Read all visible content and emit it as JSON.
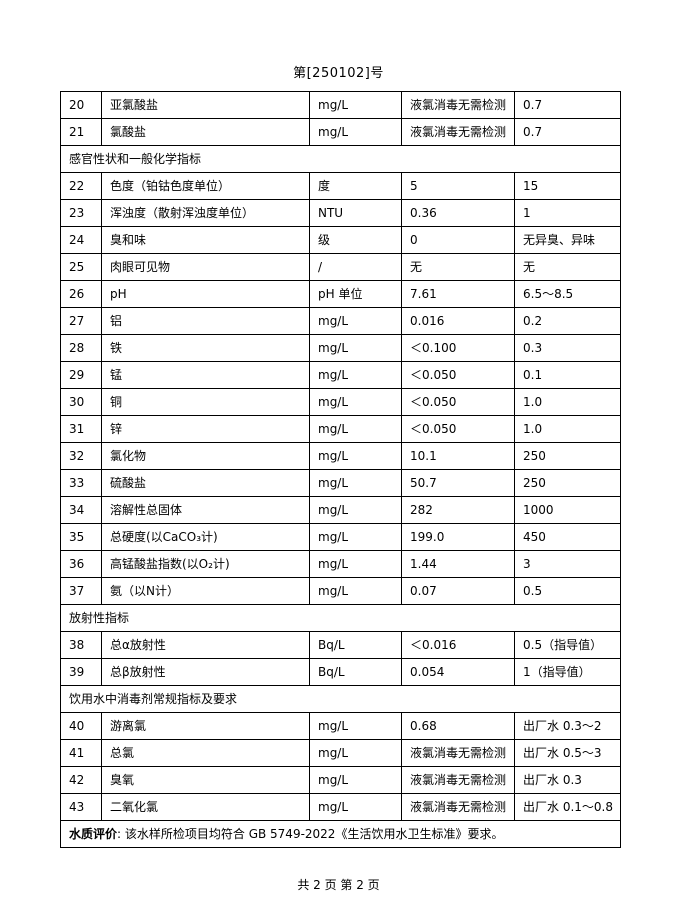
{
  "page": {
    "doc_number": "第[250102]号",
    "footer": "共 2 页 第 2 页"
  },
  "table": {
    "rows": [
      {
        "no": "20",
        "name": "亚氯酸盐",
        "unit": "mg/L",
        "value": "液氯消毒无需检测",
        "limit": "0.7"
      },
      {
        "no": "21",
        "name": "氯酸盐",
        "unit": "mg/L",
        "value": "液氯消毒无需检测",
        "limit": "0.7"
      },
      {
        "section": "感官性状和一般化学指标"
      },
      {
        "no": "22",
        "name": "色度（铂钴色度单位）",
        "unit": "度",
        "value": "5",
        "limit": "15"
      },
      {
        "no": "23",
        "name": "浑浊度（散射浑浊度单位）",
        "unit": "NTU",
        "value": "0.36",
        "limit": "1"
      },
      {
        "no": "24",
        "name": "臭和味",
        "unit": "级",
        "value": "0",
        "limit": "无异臭、异味"
      },
      {
        "no": "25",
        "name": "肉眼可见物",
        "unit": "/",
        "value": "无",
        "limit": "无"
      },
      {
        "no": "26",
        "name": "pH",
        "unit": "pH 单位",
        "value": "7.61",
        "limit": "6.5～8.5"
      },
      {
        "no": "27",
        "name": "铝",
        "unit": "mg/L",
        "value": "0.016",
        "limit": "0.2"
      },
      {
        "no": "28",
        "name": "铁",
        "unit": "mg/L",
        "value": "＜0.100",
        "limit": "0.3"
      },
      {
        "no": "29",
        "name": "锰",
        "unit": "mg/L",
        "value": "＜0.050",
        "limit": "0.1"
      },
      {
        "no": "30",
        "name": "铜",
        "unit": "mg/L",
        "value": "＜0.050",
        "limit": "1.0"
      },
      {
        "no": "31",
        "name": "锌",
        "unit": "mg/L",
        "value": "＜0.050",
        "limit": "1.0"
      },
      {
        "no": "32",
        "name": "氯化物",
        "unit": "mg/L",
        "value": "10.1",
        "limit": "250"
      },
      {
        "no": "33",
        "name": "硫酸盐",
        "unit": "mg/L",
        "value": "50.7",
        "limit": "250"
      },
      {
        "no": "34",
        "name": "溶解性总固体",
        "unit": "mg/L",
        "value": "282",
        "limit": "1000"
      },
      {
        "no": "35",
        "name": "总硬度(以CaCO₃计)",
        "unit": "mg/L",
        "value": "199.0",
        "limit": "450"
      },
      {
        "no": "36",
        "name": "高锰酸盐指数(以O₂计)",
        "unit": "mg/L",
        "value": "1.44",
        "limit": "3"
      },
      {
        "no": "37",
        "name": "氨（以N计）",
        "unit": "mg/L",
        "value": "0.07",
        "limit": "0.5"
      },
      {
        "section": "放射性指标"
      },
      {
        "no": "38",
        "name": "总α放射性",
        "unit": "Bq/L",
        "value": "＜0.016",
        "limit": "0.5（指导值）"
      },
      {
        "no": "39",
        "name": "总β放射性",
        "unit": "Bq/L",
        "value": "0.054",
        "limit": "1（指导值）"
      },
      {
        "section": "饮用水中消毒剂常规指标及要求"
      },
      {
        "no": "40",
        "name": "游离氯",
        "unit": "mg/L",
        "value": "0.68",
        "limit": "出厂水 0.3～2"
      },
      {
        "no": "41",
        "name": "总氯",
        "unit": "mg/L",
        "value": "液氯消毒无需检测",
        "limit": "出厂水 0.5～3"
      },
      {
        "no": "42",
        "name": "臭氧",
        "unit": "mg/L",
        "value": "液氯消毒无需检测",
        "limit": "出厂水 0.3"
      },
      {
        "no": "43",
        "name": "二氧化氯",
        "unit": "mg/L",
        "value": "液氯消毒无需检测",
        "limit": "出厂水 0.1～0.8"
      }
    ]
  },
  "evaluation": {
    "label": "水质评价",
    "text": ": 该水样所检项目均符合 GB  5749-2022《生活饮用水卫生标准》要求。"
  }
}
